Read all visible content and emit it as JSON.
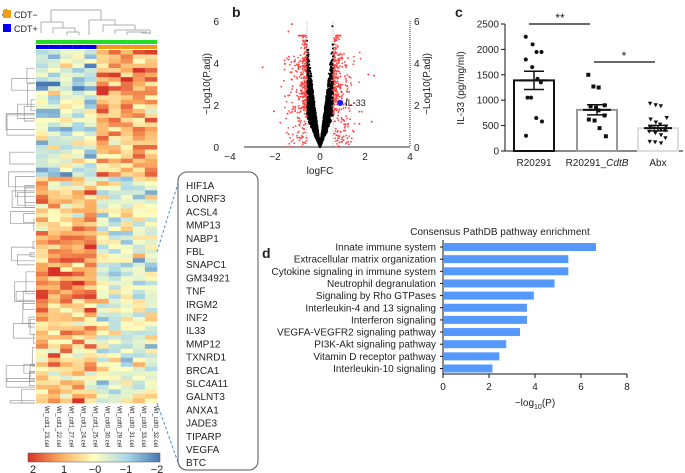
{
  "panels": {
    "a": "a",
    "b": "b",
    "c": "c",
    "d": "d"
  },
  "colors": {
    "cdt_minus": "#f39c12",
    "cdt_plus": "#0000ee",
    "group_bar": "#22dd22",
    "bar_blue": "#5599ff",
    "red_point": "#ff4444",
    "il33": "#1a1aff"
  },
  "chart_data": [
    {
      "type": "heatmap",
      "panel": "a",
      "legend": [
        {
          "label": "CDT−",
          "color": "#f39c12"
        },
        {
          "label": "CDT+",
          "color": "#0000ee"
        }
      ],
      "columns": [
        "Wt_cdt1_23.cel",
        "Wt_cdt1_22.cel",
        "Wt_cdt1_27.cel",
        "Wt_cdt1_24.cel",
        "Wt_cdt1_25.cel",
        "Wt_cdt0_30.cel",
        "Wt_cdt0_29.cel",
        "Wt_cdt0_31.cel",
        "Wt_cdt0_33.cel",
        "Wt_cdt0_32.cel"
      ],
      "column_groups": [
        "CDT+",
        "CDT+",
        "CDT+",
        "CDT+",
        "CDT+",
        "CDT−",
        "CDT−",
        "CDT−",
        "CDT−",
        "CDT−"
      ],
      "colorbar_ticks": [
        "2",
        "1",
        "−0",
        "−1",
        "−2"
      ],
      "highlighted_genes": [
        "HIF1A",
        "LONRF3",
        "ACSL4",
        "MMP13",
        "NABP1",
        "FBL",
        "SNAPC1",
        "GM34921",
        "TNF",
        "IRGM2",
        "INF2",
        "IL33",
        "MMP12",
        "TXNRD1",
        "BRCA1",
        "SLC4A11",
        "GALNT3",
        "ANXA1",
        "JADE3",
        "TIPARP",
        "VEGFA",
        "BTC"
      ],
      "highlight_gene_color": "IL33"
    },
    {
      "type": "scatter",
      "panel": "b",
      "xlabel": "logFC",
      "ylabel": "−Log10(P.adj)",
      "ylabel_right": "−Log10(P.adj)",
      "xlim": [
        -4,
        4
      ],
      "ylim": [
        0,
        6
      ],
      "xticks": [
        "−4",
        "−2",
        "0",
        "2",
        "4"
      ],
      "yticks": [
        "0",
        "2",
        "4",
        "6"
      ],
      "logfc_threshold": 0.58,
      "annotation": {
        "label": "IL-33",
        "x": 0.9,
        "y": 2.1
      },
      "notable_points": [
        [
          -2.55,
          3.8
        ],
        [
          -1.25,
          5.85
        ],
        [
          -1.4,
          5.5
        ],
        [
          2.4,
          3.4
        ],
        [
          2.15,
          3.45
        ],
        [
          0.55,
          5.75
        ],
        [
          -2.05,
          1.7
        ],
        [
          2.3,
          1.2
        ],
        [
          1.75,
          1.1
        ]
      ]
    },
    {
      "type": "bar",
      "panel": "c",
      "ylabel": "IL-33 (pg/mg/ml)",
      "ylim": [
        0,
        2500
      ],
      "yticks": [
        "0",
        "500",
        "1000",
        "1500",
        "2000",
        "2500"
      ],
      "categories": [
        "R20291",
        "R20291_",
        "Abx"
      ],
      "category_italic_suffix": [
        "",
        "CdtB",
        ""
      ],
      "means": [
        1390,
        810,
        450
      ],
      "sem": [
        180,
        100,
        55
      ],
      "points": [
        [
          2250,
          2100,
          1950,
          1950,
          1800,
          1650,
          1420,
          1350,
          1050,
          1050,
          650,
          580,
          300
        ],
        [
          1500,
          1270,
          1250,
          900,
          880,
          850,
          800,
          700,
          620,
          600,
          450,
          290
        ],
        [
          930,
          900,
          880,
          650,
          620,
          560,
          520,
          480,
          460,
          440,
          420,
          400,
          380,
          350,
          310,
          250,
          180,
          170,
          150
        ]
      ],
      "significance": [
        {
          "from": 0,
          "to": 1,
          "label": "**"
        },
        {
          "from": 1,
          "to": 2,
          "label": "*"
        }
      ]
    },
    {
      "type": "bar",
      "panel": "d",
      "orientation": "horizontal",
      "title": "Consensus PathDB pathway enrichment",
      "xlabel_prefix": "−log",
      "xlabel_sub": "10",
      "xlabel_suffix": "(P)",
      "xlim": [
        0,
        8
      ],
      "xticks": [
        "0",
        "2",
        "4",
        "6",
        "8"
      ],
      "categories": [
        "Innate immune system",
        "Extracellular matrix organization",
        "Cytokine signaling in immune system",
        "Neutrophil degranulation",
        "Signaling by Rho GTPases",
        "Interleukin-4 and 13 signaling",
        "Interferon signaling",
        "VEGFA-VEGFR2 signaling pathway",
        "PI3K-Akt signaling pathway",
        "Vitamin D receptor pathway",
        "Interleukin-10 signaling"
      ],
      "values": [
        6.65,
        5.45,
        5.45,
        4.85,
        3.95,
        3.65,
        3.65,
        3.35,
        2.75,
        2.45,
        2.15
      ]
    }
  ]
}
